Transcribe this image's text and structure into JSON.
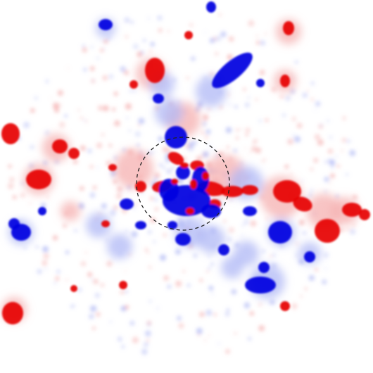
{
  "image": {
    "description_colors": {
      "background": "#ffffff",
      "positive": "#e60000",
      "positive_soft": "#f5b0b0",
      "negative": "#0000e0",
      "negative_soft": "#b0b8f5",
      "circle": "#222222"
    }
  }
}
